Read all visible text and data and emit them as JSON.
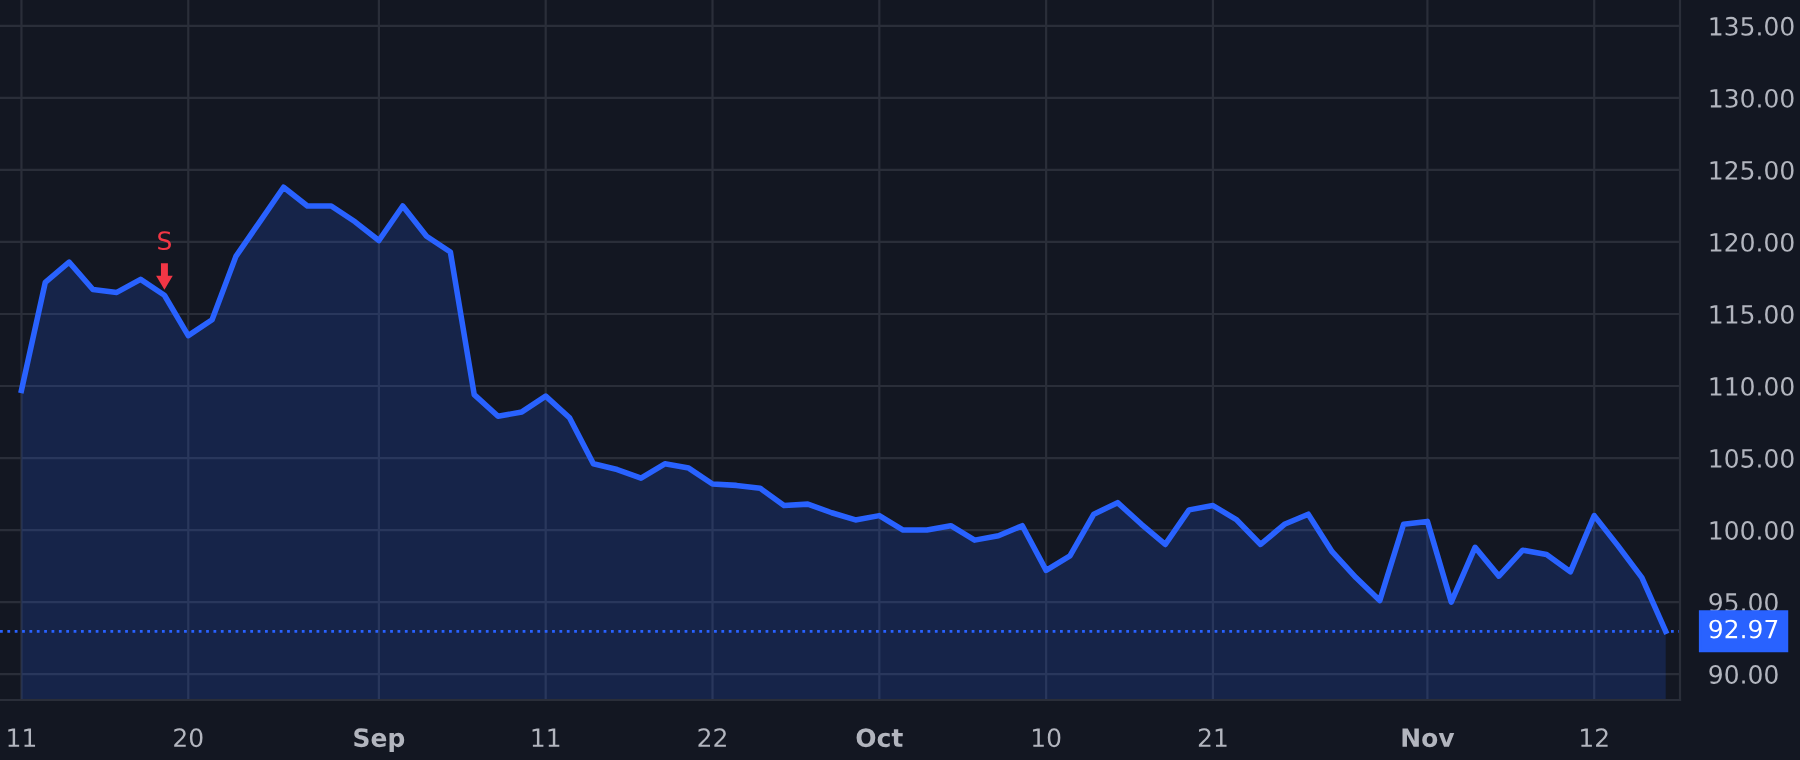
{
  "chart_data": {
    "type": "area",
    "categories": [
      "11",
      null,
      null,
      null,
      null,
      null,
      null,
      "20",
      null,
      null,
      null,
      null,
      null,
      null,
      null,
      "Sep",
      null,
      null,
      null,
      null,
      null,
      null,
      "11",
      null,
      null,
      null,
      null,
      null,
      null,
      "22",
      null,
      null,
      null,
      null,
      null,
      null,
      "Oct",
      null,
      null,
      null,
      null,
      null,
      null,
      "10",
      null,
      null,
      null,
      null,
      null,
      null,
      "21",
      null,
      null,
      null,
      null,
      null,
      null,
      null,
      null,
      "Nov",
      null,
      null,
      null,
      null,
      null,
      null,
      "12",
      null,
      null,
      null
    ],
    "series": [
      {
        "color": "#2962ff",
        "values": [
          109.7,
          117.2,
          118.6,
          116.7,
          116.5,
          117.4,
          116.3,
          113.5,
          114.6,
          119.0,
          121.4,
          123.8,
          122.5,
          122.5,
          121.4,
          120.1,
          122.5,
          120.4,
          119.3,
          109.4,
          107.9,
          108.2,
          109.3,
          107.8,
          104.6,
          104.2,
          103.6,
          104.6,
          104.3,
          103.2,
          103.1,
          102.9,
          101.7,
          101.8,
          101.2,
          100.7,
          101.0,
          100.0,
          100.0,
          100.3,
          99.3,
          99.6,
          100.3,
          97.2,
          98.2,
          101.1,
          101.9,
          100.4,
          99.0,
          101.4,
          101.7,
          100.7,
          99.0,
          100.4,
          101.1,
          98.5,
          96.7,
          95.1,
          100.4,
          100.6,
          95.0,
          98.8,
          96.8,
          98.6,
          98.3,
          97.1,
          101.0,
          98.9,
          96.7,
          92.97
        ]
      }
    ],
    "ylim": [
      88.2,
      136.8
    ],
    "yticks": [
      {
        "value": 90,
        "label": "90.00"
      },
      {
        "value": 95,
        "label": "95.00"
      },
      {
        "value": 100,
        "label": "100.00"
      },
      {
        "value": 105,
        "label": "105.00"
      },
      {
        "value": 110,
        "label": "110.00"
      },
      {
        "value": 115,
        "label": "115.00"
      },
      {
        "value": 120,
        "label": "120.00"
      },
      {
        "value": 125,
        "label": "125.00"
      },
      {
        "value": 130,
        "label": "130.00"
      },
      {
        "value": 135,
        "label": "135.00"
      }
    ],
    "ref_lines": [
      {
        "axis": "y",
        "value": 92.97,
        "label": "92.97",
        "color": "#2962ff",
        "line_style": "dotted"
      }
    ],
    "annotations": [
      {
        "text": "S",
        "y": 116.3
      }
    ],
    "grid": true,
    "line_style": "solid",
    "marker": "none"
  }
}
